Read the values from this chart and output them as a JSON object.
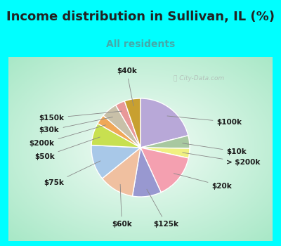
{
  "title": "Income distribution in Sullivan, IL (%)",
  "subtitle": "All residents",
  "bg_outer": "#00FFFF",
  "bg_chart_edge": "#a8e8c8",
  "bg_chart_center": "#f0faf5",
  "watermark": "City-Data.com",
  "segments": [
    {
      "label": "$100k",
      "value": 20,
      "color": "#b8a8d8"
    },
    {
      "label": "$10k",
      "value": 4,
      "color": "#a8c8a0"
    },
    {
      "label": "> $200k",
      "value": 3,
      "color": "#f0f080"
    },
    {
      "label": "$20k",
      "value": 14,
      "color": "#f4a0b0"
    },
    {
      "label": "$125k",
      "value": 9,
      "color": "#9898d0"
    },
    {
      "label": "$60k",
      "value": 11,
      "color": "#f0c0a0"
    },
    {
      "label": "$75k",
      "value": 11,
      "color": "#a8c8e8"
    },
    {
      "label": "$50k",
      "value": 7,
      "color": "#c8e050"
    },
    {
      "label": "$200k",
      "value": 3,
      "color": "#f0a858"
    },
    {
      "label": "$30k",
      "value": 5,
      "color": "#c8c0a8"
    },
    {
      "label": "$150k",
      "value": 3,
      "color": "#e89898"
    },
    {
      "label": "$40k",
      "value": 5,
      "color": "#c8a030"
    }
  ],
  "label_fontsize": 7.5,
  "title_fontsize": 13,
  "subtitle_fontsize": 10,
  "title_color": "#222222",
  "subtitle_color": "#44aaaa"
}
